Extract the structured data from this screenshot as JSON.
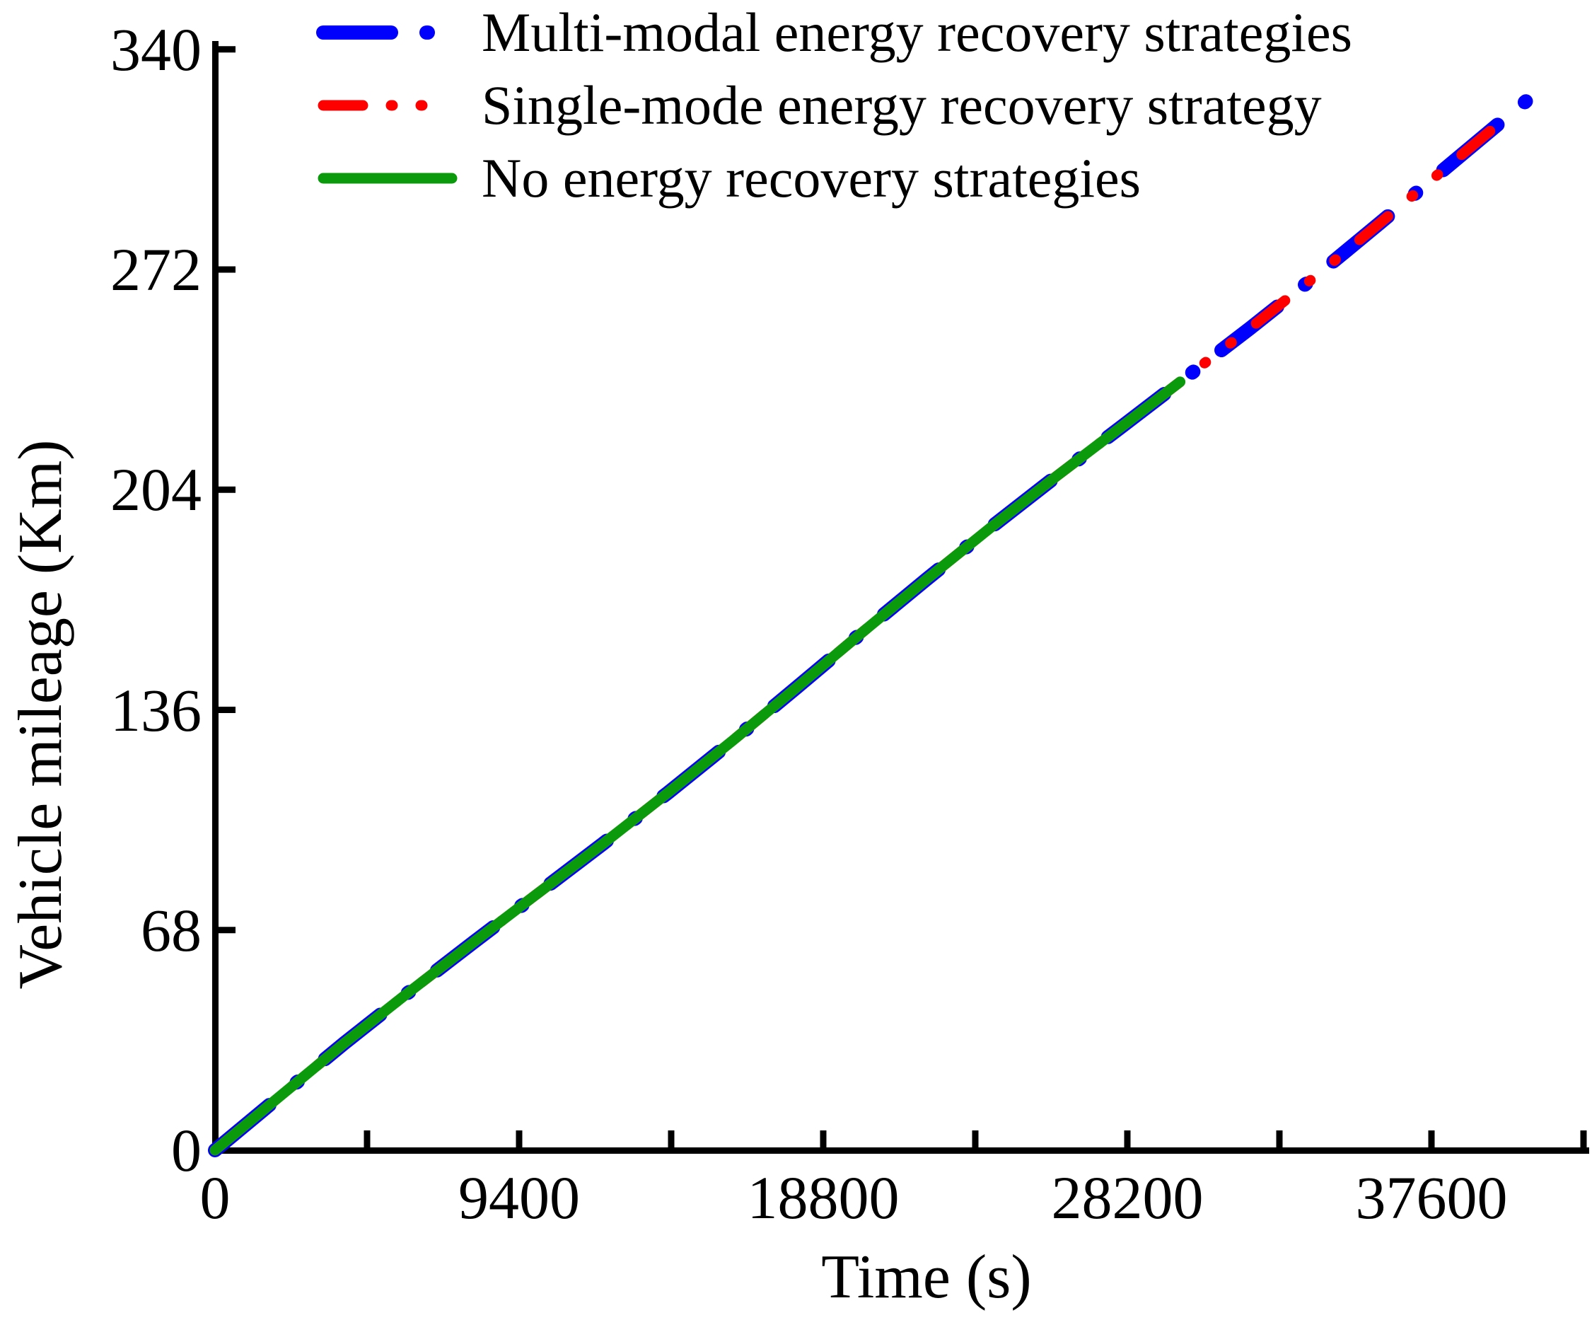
{
  "axes": {
    "x": {
      "label": "Time (s)",
      "range": [
        0,
        42300
      ],
      "major_ticks": [
        0,
        9400,
        18800,
        28200,
        37600
      ],
      "minor_ticks": [
        4700,
        14100,
        23500,
        32900,
        42300
      ]
    },
    "y": {
      "label": "Vehicle mileage (Km)",
      "range": [
        0,
        340
      ],
      "major_ticks": [
        0,
        68,
        136,
        204,
        272,
        340
      ]
    }
  },
  "legend": {
    "items": [
      {
        "label": "Multi-modal energy recovery strategies",
        "color": "#0000fd",
        "line_style": "long-dash-dot"
      },
      {
        "label": "Single-mode energy recovery strategy",
        "color": "#fd0000",
        "line_style": "dash-dot-dot"
      },
      {
        "label": "No energy recovery strategies",
        "color": "#0b9a0b",
        "line_style": "solid"
      }
    ]
  },
  "chart_data": {
    "type": "line",
    "title": "",
    "xlabel": "Time (s)",
    "ylabel": "Vehicle mileage (Km)",
    "xlim": [
      0,
      42300
    ],
    "ylim": [
      0,
      340
    ],
    "grid": false,
    "legend_position": "top-left",
    "series": [
      {
        "name": "Multi-modal energy recovery strategies",
        "color": "#0000fd",
        "line_style": "long-dash-dot",
        "points": [
          [
            0,
            0
          ],
          [
            2000,
            16.6
          ],
          [
            4000,
            33.1
          ],
          [
            6000,
            48.9
          ],
          [
            8000,
            64.3
          ],
          [
            10000,
            79.5
          ],
          [
            12000,
            94.7
          ],
          [
            14000,
            110.4
          ],
          [
            16000,
            126.5
          ],
          [
            18000,
            143.1
          ],
          [
            20000,
            159.9
          ],
          [
            22000,
            176.4
          ],
          [
            24000,
            192.5
          ],
          [
            26000,
            208.1
          ],
          [
            28000,
            223.3
          ],
          [
            29830,
            237.3
          ],
          [
            32000,
            253.9
          ],
          [
            34000,
            269.8
          ],
          [
            36000,
            286.3
          ],
          [
            38000,
            303.0
          ],
          [
            40000,
            319.7
          ],
          [
            41000,
            327.9
          ]
        ]
      },
      {
        "name": "Single-mode energy recovery strategy",
        "color": "#fd0000",
        "line_style": "dash-dot-dot",
        "points": [
          [
            0,
            0
          ],
          [
            2000,
            16.6
          ],
          [
            4000,
            33.1
          ],
          [
            6000,
            48.9
          ],
          [
            8000,
            64.3
          ],
          [
            10000,
            79.5
          ],
          [
            12000,
            94.7
          ],
          [
            14000,
            110.4
          ],
          [
            16000,
            126.5
          ],
          [
            18000,
            143.1
          ],
          [
            20000,
            159.9
          ],
          [
            22000,
            176.4
          ],
          [
            24000,
            192.5
          ],
          [
            26000,
            208.1
          ],
          [
            28000,
            223.3
          ],
          [
            29830,
            237.3
          ],
          [
            32000,
            253.9
          ],
          [
            34000,
            269.8
          ],
          [
            36000,
            286.3
          ],
          [
            38000,
            303.0
          ],
          [
            40000,
            319.7
          ],
          [
            40100,
            320.5
          ]
        ]
      },
      {
        "name": "No energy recovery strategies",
        "color": "#0b9a0b",
        "line_style": "solid",
        "points": [
          [
            0,
            0
          ],
          [
            2000,
            16.6
          ],
          [
            4000,
            33.1
          ],
          [
            6000,
            48.9
          ],
          [
            8000,
            64.3
          ],
          [
            10000,
            79.5
          ],
          [
            12000,
            94.7
          ],
          [
            14000,
            110.4
          ],
          [
            16000,
            126.5
          ],
          [
            18000,
            143.1
          ],
          [
            20000,
            159.9
          ],
          [
            22000,
            176.4
          ],
          [
            24000,
            192.5
          ],
          [
            26000,
            208.1
          ],
          [
            28000,
            223.3
          ],
          [
            29830,
            237.3
          ]
        ]
      }
    ]
  }
}
